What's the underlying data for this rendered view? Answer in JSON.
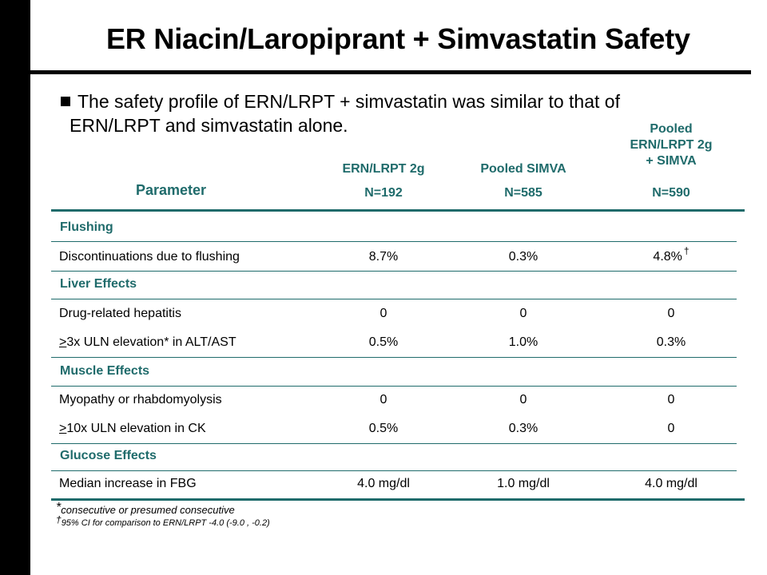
{
  "title": "ER Niacin/Laropiprant + Simvastatin Safety",
  "bullet": {
    "line1": "The safety profile of ERN/LRPT + simvastatin was similar to that of",
    "line2": "ERN/LRPT and simvastatin alone."
  },
  "table": {
    "param_header": "Parameter",
    "columns": [
      {
        "name": "ERN/LRPT 2g",
        "n": "N=192"
      },
      {
        "name": "Pooled SIMVA",
        "n": "N=585"
      },
      {
        "name_lines": [
          "Pooled",
          "ERN/LRPT 2g",
          "+ SIMVA"
        ],
        "n": "N=590"
      }
    ],
    "sections": {
      "flushing": "Flushing",
      "liver": "Liver Effects",
      "muscle": "Muscle Effects",
      "glucose": "Glucose Effects"
    },
    "rows": {
      "discont": {
        "label": "Discontinuations due to flushing",
        "ern": "8.7%",
        "simva": "0.3%",
        "pooled": "4.8%",
        "pooled_mark": "†"
      },
      "hepatitis": {
        "label": "Drug-related hepatitis",
        "ern": "0",
        "simva": "0",
        "pooled": "0"
      },
      "alt": {
        "label_sym": ">",
        "label": "3x ULN elevation* in ALT/AST",
        "ern": "0.5%",
        "simva": "1.0%",
        "pooled": "0.3%"
      },
      "myopathy": {
        "label": "Myopathy or rhabdomyolysis",
        "ern": "0",
        "simva": "0",
        "pooled": "0"
      },
      "ck": {
        "label_sym": ">",
        "label": "10x ULN elevation in CK",
        "ern": "0.5%",
        "simva": "0.3%",
        "pooled": "0"
      },
      "fbg": {
        "label": "Median increase in FBG",
        "ern": "4.0 mg/dl",
        "simva": "1.0 mg/dl",
        "pooled": "4.0 mg/dl"
      }
    }
  },
  "footnotes": {
    "star_mark": "*",
    "star_text": "consecutive or presumed consecutive",
    "dagger_mark": "†",
    "dagger_text": "95% CI for comparison to ERN/LRPT -4.0 (-9.0 , -0.2)"
  }
}
